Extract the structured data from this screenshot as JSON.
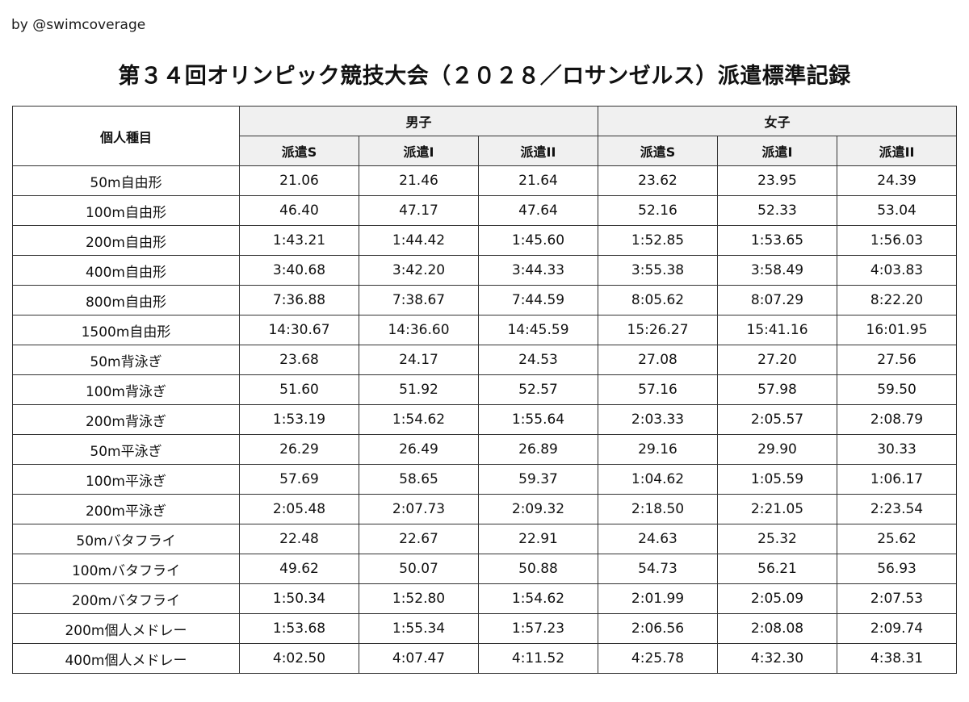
{
  "byline": "by @swimcoverage",
  "title": "第３４回オリンピック競技大会（２０２８／ロサンゼルス）派遣標準記録",
  "table": {
    "event_header": "個人種目",
    "groups": [
      "男子",
      "女子"
    ],
    "subheaders": [
      "派遣S",
      "派遣I",
      "派遣II",
      "派遣S",
      "派遣I",
      "派遣II"
    ],
    "rows": [
      {
        "event": "50m自由形",
        "values": [
          "21.06",
          "21.46",
          "21.64",
          "23.62",
          "23.95",
          "24.39"
        ]
      },
      {
        "event": "100m自由形",
        "values": [
          "46.40",
          "47.17",
          "47.64",
          "52.16",
          "52.33",
          "53.04"
        ]
      },
      {
        "event": "200m自由形",
        "values": [
          "1:43.21",
          "1:44.42",
          "1:45.60",
          "1:52.85",
          "1:53.65",
          "1:56.03"
        ]
      },
      {
        "event": "400m自由形",
        "values": [
          "3:40.68",
          "3:42.20",
          "3:44.33",
          "3:55.38",
          "3:58.49",
          "4:03.83"
        ]
      },
      {
        "event": "800m自由形",
        "values": [
          "7:36.88",
          "7:38.67",
          "7:44.59",
          "8:05.62",
          "8:07.29",
          "8:22.20"
        ]
      },
      {
        "event": "1500m自由形",
        "values": [
          "14:30.67",
          "14:36.60",
          "14:45.59",
          "15:26.27",
          "15:41.16",
          "16:01.95"
        ]
      },
      {
        "event": "50m背泳ぎ",
        "values": [
          "23.68",
          "24.17",
          "24.53",
          "27.08",
          "27.20",
          "27.56"
        ]
      },
      {
        "event": "100m背泳ぎ",
        "values": [
          "51.60",
          "51.92",
          "52.57",
          "57.16",
          "57.98",
          "59.50"
        ]
      },
      {
        "event": "200m背泳ぎ",
        "values": [
          "1:53.19",
          "1:54.62",
          "1:55.64",
          "2:03.33",
          "2:05.57",
          "2:08.79"
        ]
      },
      {
        "event": "50m平泳ぎ",
        "values": [
          "26.29",
          "26.49",
          "26.89",
          "29.16",
          "29.90",
          "30.33"
        ]
      },
      {
        "event": "100m平泳ぎ",
        "values": [
          "57.69",
          "58.65",
          "59.37",
          "1:04.62",
          "1:05.59",
          "1:06.17"
        ]
      },
      {
        "event": "200m平泳ぎ",
        "values": [
          "2:05.48",
          "2:07.73",
          "2:09.32",
          "2:18.50",
          "2:21.05",
          "2:23.54"
        ]
      },
      {
        "event": "50mバタフライ",
        "values": [
          "22.48",
          "22.67",
          "22.91",
          "24.63",
          "25.32",
          "25.62"
        ]
      },
      {
        "event": "100mバタフライ",
        "values": [
          "49.62",
          "50.07",
          "50.88",
          "54.73",
          "56.21",
          "56.93"
        ]
      },
      {
        "event": "200mバタフライ",
        "values": [
          "1:50.34",
          "1:52.80",
          "1:54.62",
          "2:01.99",
          "2:05.09",
          "2:07.53"
        ]
      },
      {
        "event": "200m個人メドレー",
        "values": [
          "1:53.68",
          "1:55.34",
          "1:57.23",
          "2:06.56",
          "2:08.08",
          "2:09.74"
        ]
      },
      {
        "event": "400m個人メドレー",
        "values": [
          "4:02.50",
          "4:07.47",
          "4:11.52",
          "4:25.78",
          "4:32.30",
          "4:38.31"
        ]
      }
    ]
  }
}
